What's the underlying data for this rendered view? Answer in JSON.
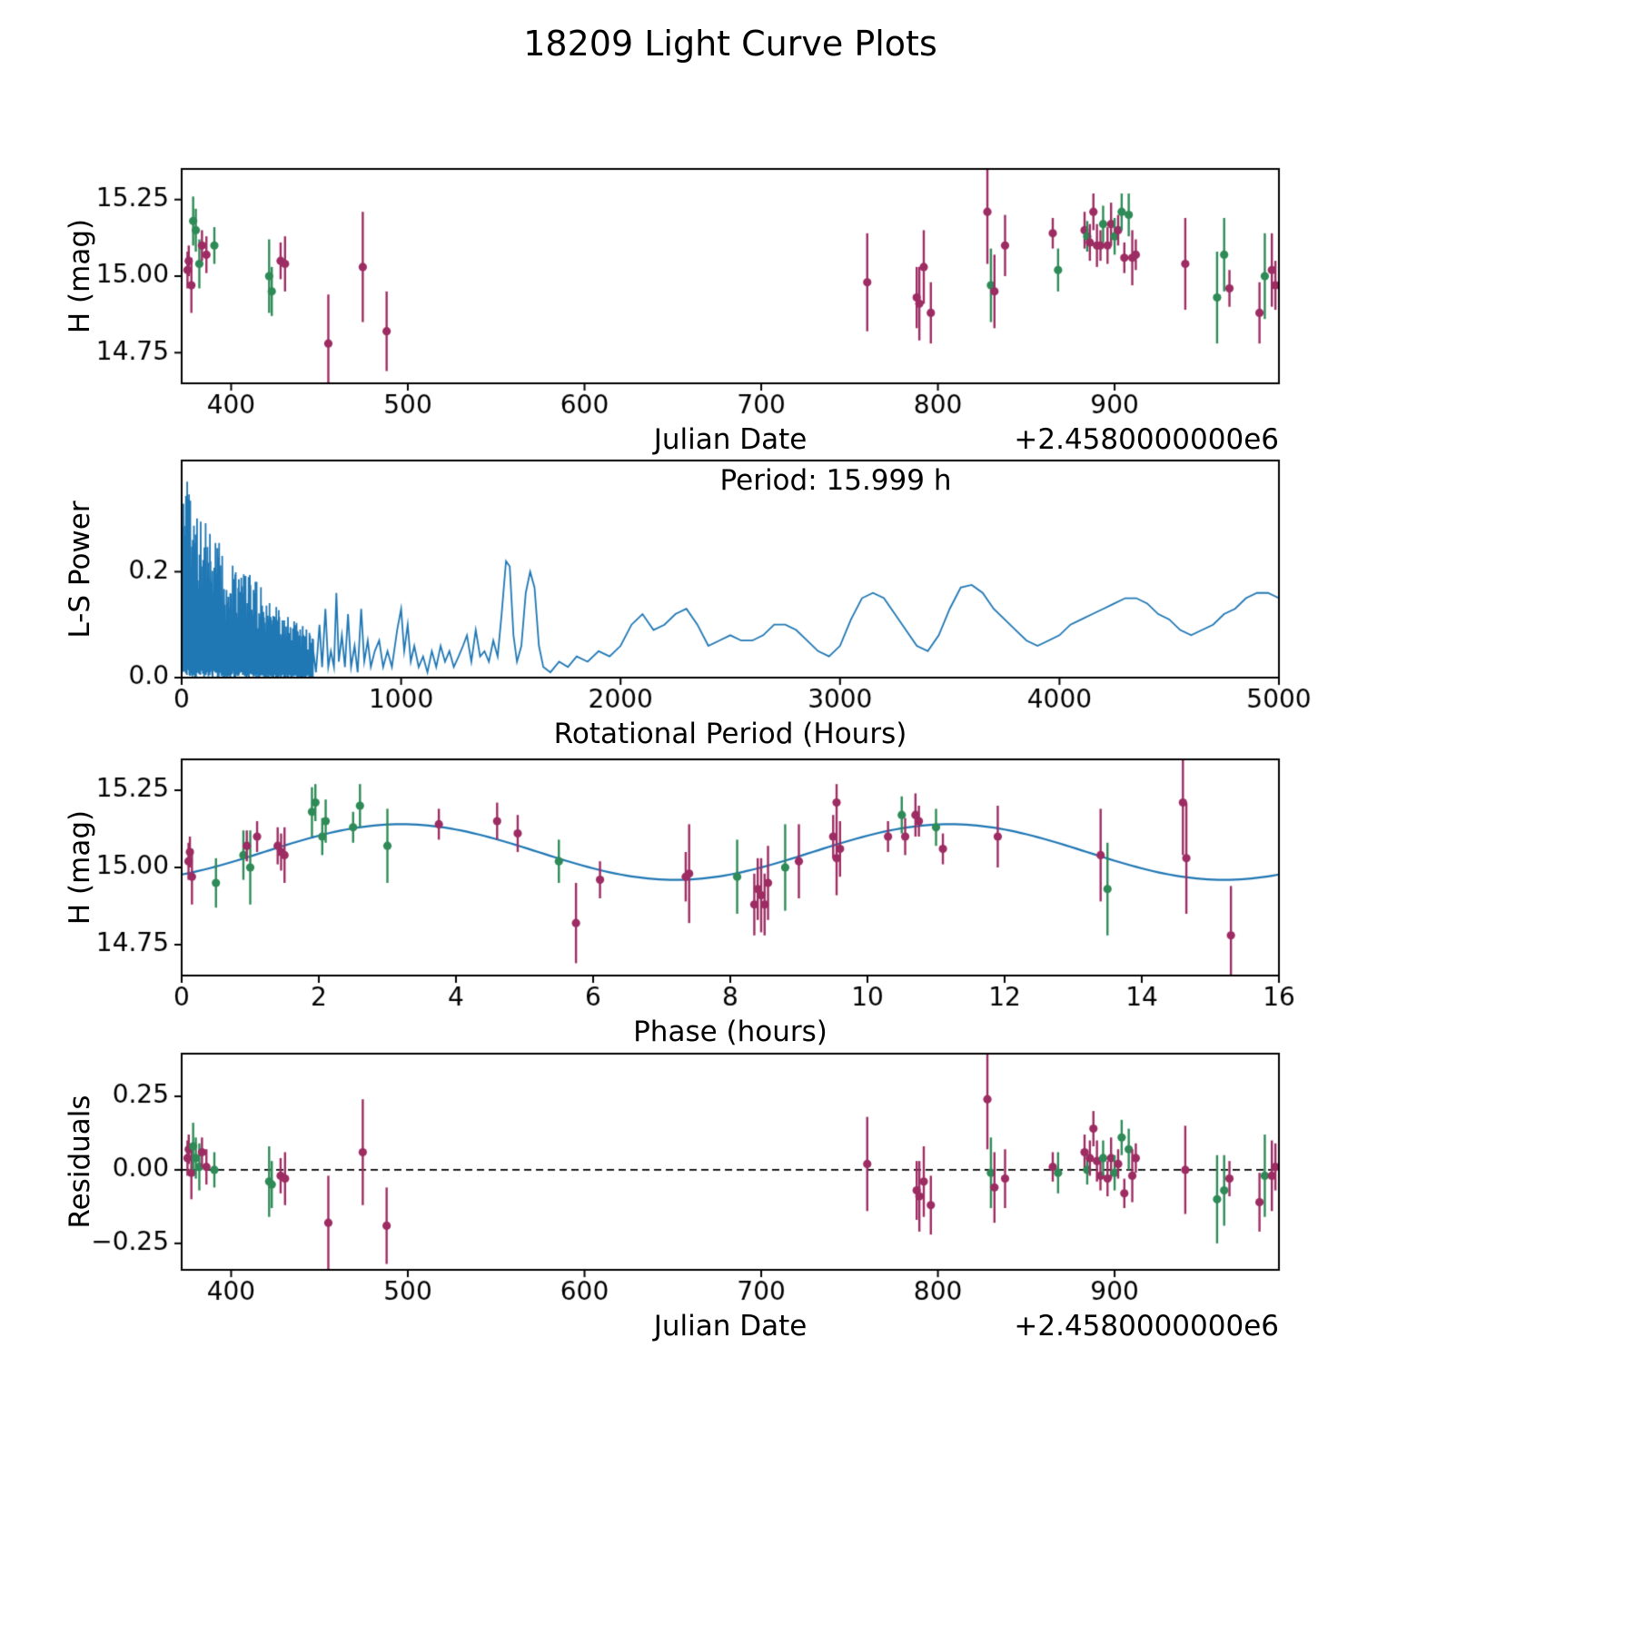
{
  "title": "18209 Light Curve Plots",
  "palette": {
    "background": "#ffffff",
    "axis": "#000000",
    "blue": "#1f77b4",
    "green": "#2e8b57",
    "magenta": "#9d2c63"
  },
  "measurement_fields": [
    "julian_date_minus_2458000",
    "phase_hours",
    "h_mag",
    "h_err_mag",
    "band",
    "residual_mag"
  ],
  "measurements": [
    [
      375.3,
      0.1,
      15.02,
      0.06,
      "m",
      0.04
    ],
    [
      376.0,
      0.12,
      15.05,
      0.05,
      "m",
      0.07
    ],
    [
      377.5,
      0.15,
      14.97,
      0.09,
      "m",
      -0.01
    ],
    [
      378.5,
      1.9,
      15.18,
      0.08,
      "g",
      0.08
    ],
    [
      380.0,
      2.1,
      15.15,
      0.07,
      "g",
      0.04
    ],
    [
      382.0,
      0.9,
      15.04,
      0.08,
      "g",
      0.01
    ],
    [
      383.5,
      1.1,
      15.1,
      0.05,
      "m",
      0.06
    ],
    [
      386.0,
      1.4,
      15.07,
      0.06,
      "m",
      0.01
    ],
    [
      390.5,
      2.05,
      15.1,
      0.06,
      "g",
      0.0
    ],
    [
      421.5,
      1.0,
      15.0,
      0.12,
      "g",
      -0.04
    ],
    [
      423.0,
      0.5,
      14.95,
      0.08,
      "g",
      -0.05
    ],
    [
      428.0,
      1.45,
      15.05,
      0.06,
      "m",
      -0.02
    ],
    [
      430.5,
      1.5,
      15.04,
      0.09,
      "m",
      -0.03
    ],
    [
      455.0,
      15.3,
      14.78,
      0.16,
      "m",
      -0.18
    ],
    [
      474.5,
      14.65,
      15.03,
      0.18,
      "m",
      0.06
    ],
    [
      488.0,
      5.75,
      14.82,
      0.13,
      "m",
      -0.19
    ],
    [
      760.0,
      7.4,
      14.98,
      0.16,
      "m",
      0.02
    ],
    [
      788.0,
      8.4,
      14.93,
      0.1,
      "m",
      -0.07
    ],
    [
      789.5,
      8.45,
      14.91,
      0.12,
      "m",
      -0.09
    ],
    [
      792.0,
      9.55,
      15.03,
      0.12,
      "m",
      -0.04
    ],
    [
      796.0,
      8.5,
      14.88,
      0.1,
      "m",
      -0.12
    ],
    [
      828.0,
      14.6,
      15.21,
      0.17,
      "m",
      0.24
    ],
    [
      830.0,
      8.1,
      14.97,
      0.12,
      "g",
      -0.01
    ],
    [
      832.0,
      8.55,
      14.95,
      0.12,
      "m",
      -0.06
    ],
    [
      838.0,
      11.9,
      15.1,
      0.1,
      "m",
      -0.03
    ],
    [
      865.0,
      3.75,
      15.14,
      0.05,
      "m",
      0.01
    ],
    [
      868.0,
      5.5,
      15.02,
      0.07,
      "g",
      -0.01
    ],
    [
      883.0,
      4.6,
      15.15,
      0.06,
      "m",
      0.06
    ],
    [
      884.5,
      2.5,
      15.13,
      0.05,
      "g",
      0.0
    ],
    [
      886.0,
      4.9,
      15.11,
      0.06,
      "m",
      0.04
    ],
    [
      888.0,
      9.55,
      15.21,
      0.06,
      "m",
      0.14
    ],
    [
      890.0,
      9.5,
      15.1,
      0.07,
      "m",
      0.03
    ],
    [
      892.0,
      10.3,
      15.1,
      0.05,
      "m",
      -0.02
    ],
    [
      893.5,
      10.5,
      15.17,
      0.06,
      "g",
      0.04
    ],
    [
      896.0,
      10.55,
      15.1,
      0.06,
      "m",
      -0.03
    ],
    [
      898.0,
      10.7,
      15.17,
      0.07,
      "m",
      0.04
    ],
    [
      900.0,
      11.0,
      15.13,
      0.06,
      "g",
      -0.01
    ],
    [
      902.0,
      10.75,
      15.15,
      0.05,
      "m",
      0.02
    ],
    [
      904.0,
      1.95,
      15.21,
      0.06,
      "g",
      0.11
    ],
    [
      905.5,
      11.1,
      15.06,
      0.05,
      "m",
      -0.08
    ],
    [
      908.0,
      2.6,
      15.2,
      0.07,
      "g",
      0.07
    ],
    [
      910.0,
      9.6,
      15.06,
      0.09,
      "m",
      -0.02
    ],
    [
      912.0,
      0.95,
      15.07,
      0.05,
      "m",
      0.04
    ],
    [
      940.0,
      13.4,
      15.04,
      0.15,
      "m",
      0.0
    ],
    [
      958.0,
      13.5,
      14.93,
      0.15,
      "g",
      -0.1
    ],
    [
      962.0,
      3.0,
      15.07,
      0.12,
      "g",
      -0.07
    ],
    [
      965.0,
      6.1,
      14.96,
      0.06,
      "m",
      -0.03
    ],
    [
      982.0,
      8.35,
      14.88,
      0.1,
      "m",
      -0.11
    ],
    [
      985.0,
      8.8,
      15.0,
      0.14,
      "g",
      -0.02
    ],
    [
      989.0,
      9.0,
      15.02,
      0.12,
      "m",
      -0.02
    ],
    [
      991.0,
      7.35,
      14.97,
      0.08,
      "m",
      0.01
    ]
  ],
  "chart_data": [
    {
      "id": "jd_lightcurve",
      "type": "scatter",
      "xlabel": "Julian Date",
      "ylabel": "H (mag)",
      "x_offset_label": "+2.4580000000e6",
      "xlim": [
        372,
        993
      ],
      "ylim": [
        14.65,
        15.35
      ],
      "xticks": [
        400,
        500,
        600,
        700,
        800,
        900
      ],
      "xticklabels": [
        "400",
        "500",
        "600",
        "700",
        "800",
        "900"
      ],
      "yticks": [
        14.75,
        15.0,
        15.25
      ],
      "yticklabels": [
        "14.75",
        "15.00",
        "15.25"
      ],
      "grid": false,
      "uses": "measurements: x=julian_date, y=h_mag, err=h_err_mag"
    },
    {
      "id": "periodogram",
      "type": "line",
      "xlabel": "Rotational Period (Hours)",
      "ylabel": "L-S Power",
      "annotation": "Period: 15.999 h",
      "best_period_hours": 15.999,
      "xlim": [
        0,
        5000
      ],
      "ylim": [
        0,
        0.41
      ],
      "xticks": [
        0,
        1000,
        2000,
        3000,
        4000,
        5000
      ],
      "xticklabels": [
        "0",
        "1000",
        "2000",
        "3000",
        "4000",
        "5000"
      ],
      "yticks": [
        0.0,
        0.2
      ],
      "yticklabels": [
        "0.0",
        "0.2"
      ],
      "grid": false,
      "noise_envelope": [
        [
          0,
          0.4
        ],
        [
          20,
          0.38
        ],
        [
          50,
          0.34
        ],
        [
          80,
          0.31
        ],
        [
          120,
          0.29
        ],
        [
          160,
          0.26
        ],
        [
          200,
          0.24
        ],
        [
          250,
          0.22
        ],
        [
          300,
          0.2
        ],
        [
          350,
          0.18
        ],
        [
          400,
          0.15
        ],
        [
          450,
          0.13
        ],
        [
          500,
          0.11
        ],
        [
          550,
          0.1
        ],
        [
          600,
          0.08
        ]
      ],
      "smooth_curve": [
        [
          600,
          0.05
        ],
        [
          612,
          0.01
        ],
        [
          628,
          0.1
        ],
        [
          640,
          0.02
        ],
        [
          655,
          0.13
        ],
        [
          668,
          0.02
        ],
        [
          680,
          0.05
        ],
        [
          694,
          0.02
        ],
        [
          705,
          0.16
        ],
        [
          716,
          0.03
        ],
        [
          730,
          0.08
        ],
        [
          744,
          0.02
        ],
        [
          758,
          0.12
        ],
        [
          772,
          0.02
        ],
        [
          788,
          0.06
        ],
        [
          802,
          0.01
        ],
        [
          818,
          0.13
        ],
        [
          832,
          0.03
        ],
        [
          848,
          0.07
        ],
        [
          862,
          0.02
        ],
        [
          880,
          0.05
        ],
        [
          900,
          0.07
        ],
        [
          918,
          0.02
        ],
        [
          938,
          0.05
        ],
        [
          958,
          0.02
        ],
        [
          982,
          0.09
        ],
        [
          1000,
          0.13
        ],
        [
          1014,
          0.05
        ],
        [
          1030,
          0.1
        ],
        [
          1044,
          0.03
        ],
        [
          1060,
          0.06
        ],
        [
          1080,
          0.02
        ],
        [
          1100,
          0.04
        ],
        [
          1120,
          0.01
        ],
        [
          1140,
          0.05
        ],
        [
          1160,
          0.02
        ],
        [
          1180,
          0.06
        ],
        [
          1200,
          0.03
        ],
        [
          1220,
          0.05
        ],
        [
          1240,
          0.02
        ],
        [
          1262,
          0.04
        ],
        [
          1282,
          0.06
        ],
        [
          1300,
          0.08
        ],
        [
          1320,
          0.03
        ],
        [
          1340,
          0.09
        ],
        [
          1360,
          0.04
        ],
        [
          1380,
          0.05
        ],
        [
          1400,
          0.03
        ],
        [
          1420,
          0.07
        ],
        [
          1440,
          0.04
        ],
        [
          1458,
          0.12
        ],
        [
          1478,
          0.22
        ],
        [
          1495,
          0.21
        ],
        [
          1512,
          0.08
        ],
        [
          1528,
          0.03
        ],
        [
          1548,
          0.06
        ],
        [
          1568,
          0.16
        ],
        [
          1588,
          0.2
        ],
        [
          1608,
          0.17
        ],
        [
          1628,
          0.06
        ],
        [
          1648,
          0.02
        ],
        [
          1680,
          0.01
        ],
        [
          1720,
          0.03
        ],
        [
          1760,
          0.02
        ],
        [
          1800,
          0.04
        ],
        [
          1850,
          0.03
        ],
        [
          1900,
          0.05
        ],
        [
          1950,
          0.04
        ],
        [
          2000,
          0.06
        ],
        [
          2050,
          0.1
        ],
        [
          2100,
          0.12
        ],
        [
          2150,
          0.09
        ],
        [
          2200,
          0.1
        ],
        [
          2250,
          0.12
        ],
        [
          2300,
          0.13
        ],
        [
          2350,
          0.1
        ],
        [
          2400,
          0.06
        ],
        [
          2450,
          0.07
        ],
        [
          2500,
          0.08
        ],
        [
          2550,
          0.07
        ],
        [
          2600,
          0.07
        ],
        [
          2650,
          0.08
        ],
        [
          2700,
          0.1
        ],
        [
          2750,
          0.1
        ],
        [
          2800,
          0.09
        ],
        [
          2850,
          0.07
        ],
        [
          2900,
          0.05
        ],
        [
          2950,
          0.04
        ],
        [
          3000,
          0.06
        ],
        [
          3050,
          0.11
        ],
        [
          3100,
          0.15
        ],
        [
          3150,
          0.16
        ],
        [
          3200,
          0.15
        ],
        [
          3250,
          0.12
        ],
        [
          3300,
          0.09
        ],
        [
          3350,
          0.06
        ],
        [
          3400,
          0.05
        ],
        [
          3450,
          0.08
        ],
        [
          3500,
          0.13
        ],
        [
          3550,
          0.17
        ],
        [
          3600,
          0.175
        ],
        [
          3650,
          0.16
        ],
        [
          3700,
          0.13
        ],
        [
          3750,
          0.11
        ],
        [
          3800,
          0.09
        ],
        [
          3850,
          0.07
        ],
        [
          3900,
          0.06
        ],
        [
          3950,
          0.07
        ],
        [
          4000,
          0.08
        ],
        [
          4050,
          0.1
        ],
        [
          4100,
          0.11
        ],
        [
          4150,
          0.12
        ],
        [
          4200,
          0.13
        ],
        [
          4250,
          0.14
        ],
        [
          4300,
          0.15
        ],
        [
          4350,
          0.15
        ],
        [
          4400,
          0.14
        ],
        [
          4450,
          0.12
        ],
        [
          4500,
          0.11
        ],
        [
          4550,
          0.09
        ],
        [
          4600,
          0.08
        ],
        [
          4650,
          0.09
        ],
        [
          4700,
          0.1
        ],
        [
          4750,
          0.12
        ],
        [
          4800,
          0.13
        ],
        [
          4850,
          0.15
        ],
        [
          4900,
          0.16
        ],
        [
          4950,
          0.16
        ],
        [
          5000,
          0.15
        ]
      ]
    },
    {
      "id": "phased_lightcurve",
      "type": "scatter",
      "xlabel": "Phase (hours)",
      "ylabel": "H (mag)",
      "xlim": [
        0,
        16
      ],
      "ylim": [
        14.65,
        15.35
      ],
      "xticks": [
        0,
        2,
        4,
        6,
        8,
        10,
        12,
        14,
        16
      ],
      "xticklabels": [
        "0",
        "2",
        "4",
        "6",
        "8",
        "10",
        "12",
        "14",
        "16"
      ],
      "yticks": [
        14.75,
        15.0,
        15.25
      ],
      "yticklabels": [
        "14.75",
        "15.00",
        "15.25"
      ],
      "grid": false,
      "fit": {
        "mean": 15.05,
        "amplitude": 0.09,
        "period_hours": 8,
        "phase_offset_hours": 1.2
      },
      "uses": "measurements: x=phase_hours, y=h_mag, err=h_err_mag"
    },
    {
      "id": "residuals",
      "type": "scatter",
      "xlabel": "Julian Date",
      "ylabel": "Residuals",
      "x_offset_label": "+2.4580000000e6",
      "xlim": [
        372,
        993
      ],
      "ylim": [
        -0.34,
        0.395
      ],
      "xticks": [
        400,
        500,
        600,
        700,
        800,
        900
      ],
      "xticklabels": [
        "400",
        "500",
        "600",
        "700",
        "800",
        "900"
      ],
      "yticks": [
        -0.25,
        0.0,
        0.25
      ],
      "yticklabels": [
        "−0.25",
        "0.00",
        "0.25"
      ],
      "zero_line": true,
      "grid": false,
      "uses": "measurements: x=julian_date, y=residual_mag, err=h_err_mag"
    }
  ]
}
